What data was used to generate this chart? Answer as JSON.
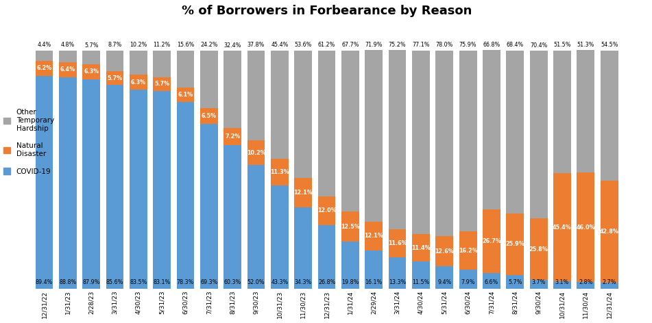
{
  "title": "% of Borrowers in Forbearance by Reason",
  "categories": [
    "12/31/22",
    "1/31/23",
    "2/28/23",
    "3/31/23",
    "4/30/23",
    "5/31/23",
    "6/30/23",
    "7/31/23",
    "8/31/23",
    "9/30/23",
    "10/31/23",
    "11/30/23",
    "12/31/23",
    "1/31/24",
    "2/29/24",
    "3/31/24",
    "4/30/24",
    "5/31/24",
    "6/30/24",
    "7/31/24",
    "8/31/24",
    "9/30/24",
    "10/31/24",
    "11/30/24",
    "12/31/24"
  ],
  "covid": [
    89.4,
    88.8,
    87.9,
    85.6,
    83.5,
    83.1,
    78.3,
    69.3,
    60.3,
    52.0,
    43.3,
    34.3,
    26.8,
    19.8,
    16.1,
    13.3,
    11.5,
    9.4,
    7.9,
    6.6,
    5.7,
    3.7,
    3.1,
    2.8,
    2.7
  ],
  "natural": [
    6.2,
    6.4,
    6.3,
    5.7,
    6.3,
    5.7,
    6.1,
    6.5,
    7.2,
    10.2,
    11.3,
    12.1,
    12.0,
    12.5,
    12.1,
    11.6,
    11.4,
    12.6,
    16.2,
    26.7,
    25.9,
    25.8,
    45.4,
    46.0,
    42.8
  ],
  "other": [
    4.4,
    4.8,
    5.7,
    8.7,
    10.2,
    11.2,
    15.6,
    24.2,
    32.4,
    37.8,
    45.4,
    53.6,
    61.2,
    67.7,
    71.9,
    75.2,
    77.1,
    78.0,
    75.9,
    66.8,
    68.4,
    70.4,
    51.5,
    51.3,
    54.5
  ],
  "covid_color": "#5B9BD5",
  "natural_color": "#ED7D31",
  "other_color": "#A5A5A5",
  "background_color": "#FFFFFF",
  "title_fontsize": 13
}
